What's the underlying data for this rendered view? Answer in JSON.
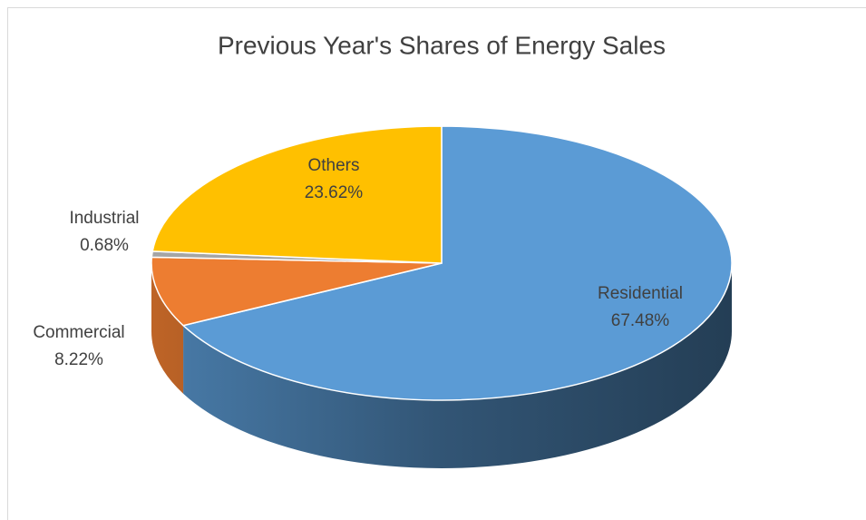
{
  "chart_data": {
    "type": "pie",
    "title": "Previous Year's Shares of Energy Sales",
    "categories": [
      "Residential",
      "Commercial",
      "Industrial",
      "Others"
    ],
    "values": [
      67.48,
      8.22,
      0.68,
      23.62
    ],
    "value_labels": [
      "67.48%",
      "8.22%",
      "0.68%",
      "23.62%"
    ],
    "colors": [
      "#5b9bd5",
      "#ed7d31",
      "#a5a5a5",
      "#ffc000"
    ]
  }
}
